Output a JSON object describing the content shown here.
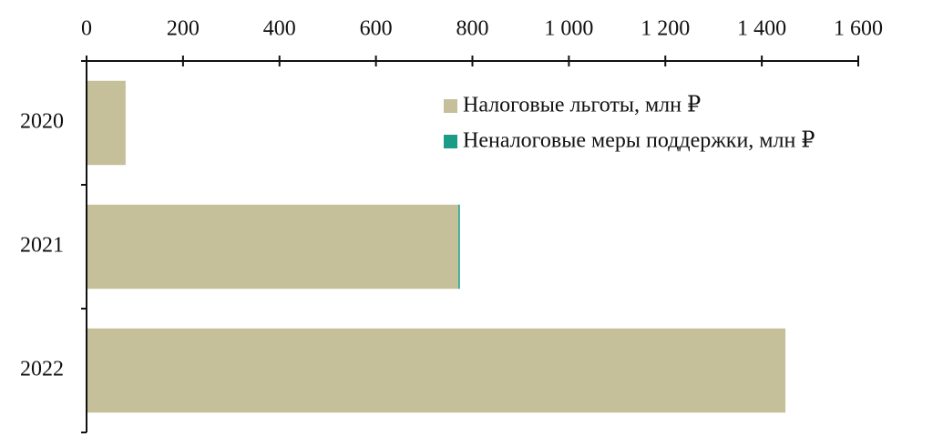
{
  "chart_data": {
    "type": "stacked-barh",
    "categories": [
      "2020",
      "2021",
      "2022"
    ],
    "series": [
      {
        "name": "Налоговые льготы, млн ₽",
        "color": "#c5bf9a",
        "values": [
          81,
          771,
          1449
        ]
      },
      {
        "name": "Неналоговые меры поддержки, млн ₽",
        "color": "#1a9c87",
        "values": [
          0,
          3,
          0
        ]
      }
    ],
    "xlim": [
      0,
      1600
    ],
    "xticks": [
      0,
      200,
      400,
      600,
      800,
      {
        "value": 1000,
        "label": "1 000"
      },
      {
        "value": 1200,
        "label": "1 200"
      },
      {
        "value": 1400,
        "label": "1 400"
      },
      {
        "value": 1600,
        "label": "1 600"
      }
    ],
    "legend": "upper right"
  }
}
